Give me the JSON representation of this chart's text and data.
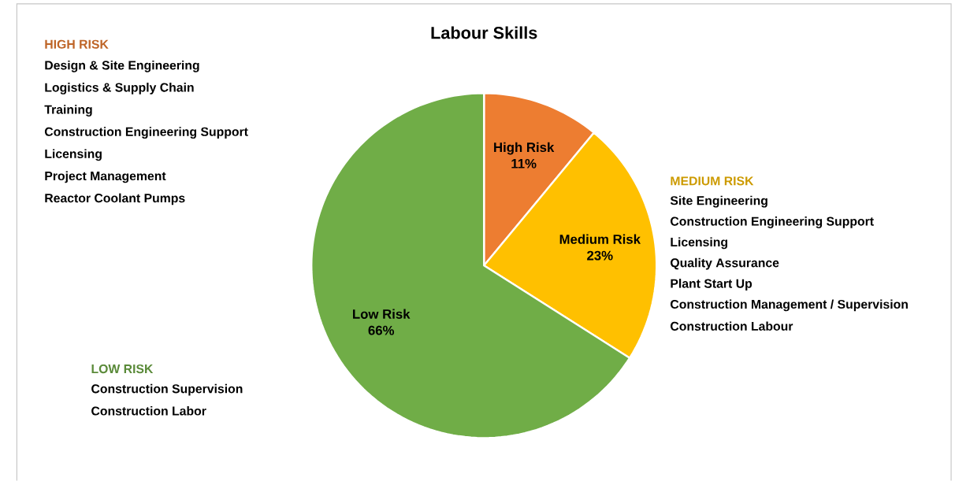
{
  "chart_data": {
    "type": "pie",
    "title": "Labour Skills",
    "categories": [
      "High Risk",
      "Medium Risk",
      "Low Risk"
    ],
    "values": [
      11,
      23,
      66
    ],
    "value_labels": [
      "11%",
      "23%",
      "66%"
    ],
    "colors": [
      "#ed7d31",
      "#ffc000",
      "#70ad47"
    ],
    "annotations": [
      "HIGH RISK",
      "Design & Site Engineering",
      "Logistics & Supply Chain",
      "Training",
      "Construction Engineering Support",
      "Licensing",
      "Project Management",
      "Reactor Coolant Pumps",
      "MEDIUM RISK",
      "Site Engineering",
      "Construction Engineering Support",
      "Licensing",
      "Quality Assurance",
      "Plant Start Up",
      "Construction Management / Supervision",
      "Construction Labour",
      "LOW RISK",
      "Construction Supervision",
      "Construction Labor"
    ]
  }
}
